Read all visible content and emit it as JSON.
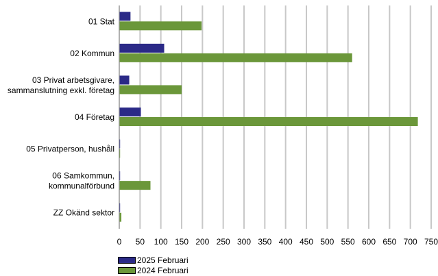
{
  "chart_data": {
    "type": "bar",
    "orientation": "horizontal",
    "categories": [
      "01 Stat",
      "02 Kommun",
      "03 Privat arbetsgivare, sammanslutning exkl. företag",
      "04 Företag",
      "05 Privatperson, hushåll",
      "06 Samkommun, kommunalförbund",
      "ZZ Okänd sektor"
    ],
    "category_lines": [
      [
        "01 Stat"
      ],
      [
        "02 Kommun"
      ],
      [
        "03 Privat arbetsgivare,",
        "sammanslutning exkl. företag"
      ],
      [
        "04 Företag"
      ],
      [
        "05 Privatperson, hushåll"
      ],
      [
        "06 Samkommun,",
        "kommunalförbund"
      ],
      [
        "ZZ Okänd sektor"
      ]
    ],
    "series": [
      {
        "name": "2025 Februari",
        "color": "#2b2a87",
        "values": [
          27,
          108,
          24,
          52,
          2,
          2,
          2
        ]
      },
      {
        "name": "2024 Februari",
        "color": "#6b973a",
        "values": [
          198,
          560,
          150,
          718,
          2,
          75,
          5
        ]
      }
    ],
    "xlim": [
      0,
      750
    ],
    "xticks": [
      "0",
      "50",
      "100",
      "150",
      "200",
      "250",
      "300",
      "350",
      "400",
      "450",
      "500",
      "550",
      "600",
      "650",
      "700",
      "750"
    ],
    "grid": true,
    "legend_position": "bottom-left",
    "title": "",
    "xlabel": "",
    "ylabel": ""
  }
}
